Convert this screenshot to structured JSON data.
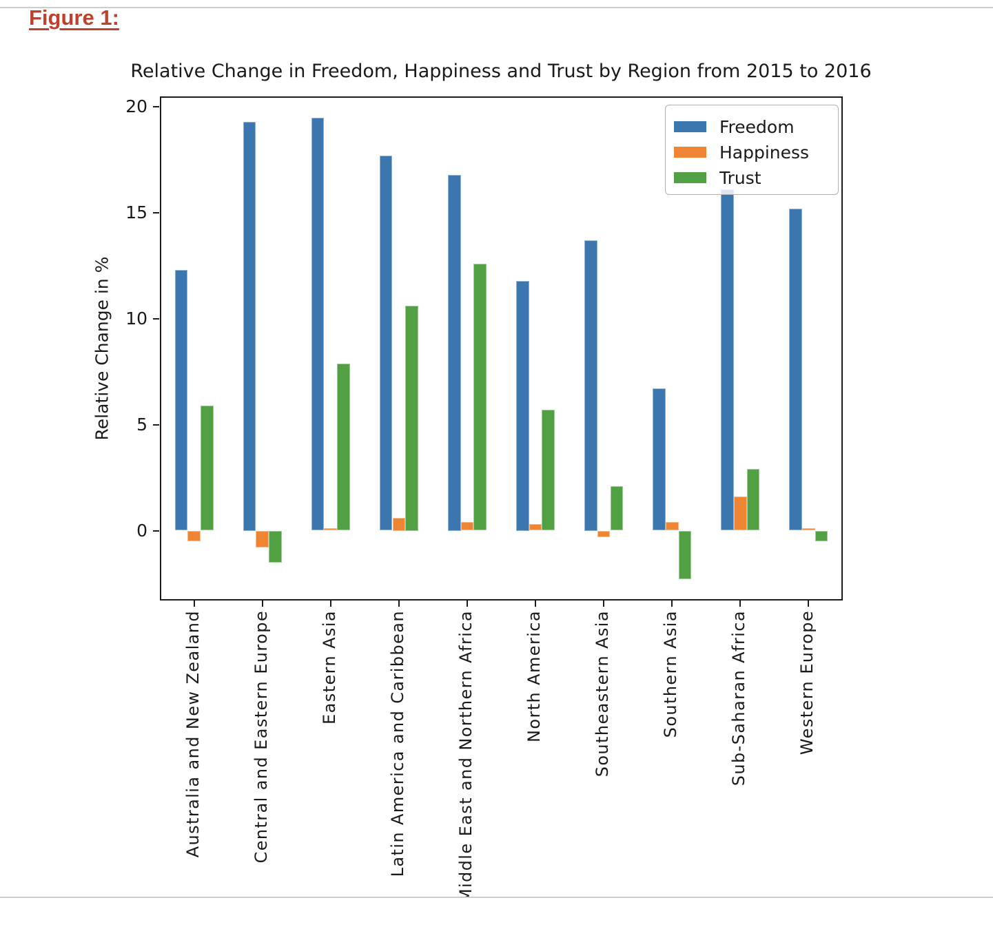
{
  "page": {
    "heading": "Figure 1:",
    "heading_color": "#c0402e",
    "divider_color": "#cdcdcd"
  },
  "chart_data": {
    "type": "bar",
    "title": "Relative Change in Freedom, Happiness and Trust by Region from 2015 to 2016",
    "xlabel": "",
    "ylabel": "Relative Change in %",
    "categories": [
      "Australia and New Zealand",
      "Central and Eastern Europe",
      "Eastern Asia",
      "Latin America and Caribbean",
      "Middle East and Northern Africa",
      "North America",
      "Southeastern Asia",
      "Southern Asia",
      "Sub-Saharan Africa",
      "Western Europe"
    ],
    "series": [
      {
        "name": "Freedom",
        "color": "#3b76af",
        "values": [
          12.3,
          19.3,
          19.5,
          17.7,
          16.8,
          11.8,
          13.7,
          6.7,
          16.1,
          15.2
        ]
      },
      {
        "name": "Happiness",
        "color": "#ef8532",
        "values": [
          -0.5,
          -0.8,
          0.1,
          0.6,
          0.4,
          0.3,
          -0.3,
          0.4,
          1.6,
          0.1
        ]
      },
      {
        "name": "Trust",
        "color": "#52a044",
        "values": [
          5.9,
          -1.5,
          7.9,
          10.6,
          12.6,
          5.7,
          2.1,
          -2.3,
          2.9,
          -0.5
        ]
      }
    ],
    "yticks": [
      0,
      5,
      10,
      15,
      20
    ],
    "ylim": [
      -3.3,
      20.5
    ],
    "legend_position": "upper right",
    "grid": false,
    "axis_color": "#1a1a1a"
  }
}
